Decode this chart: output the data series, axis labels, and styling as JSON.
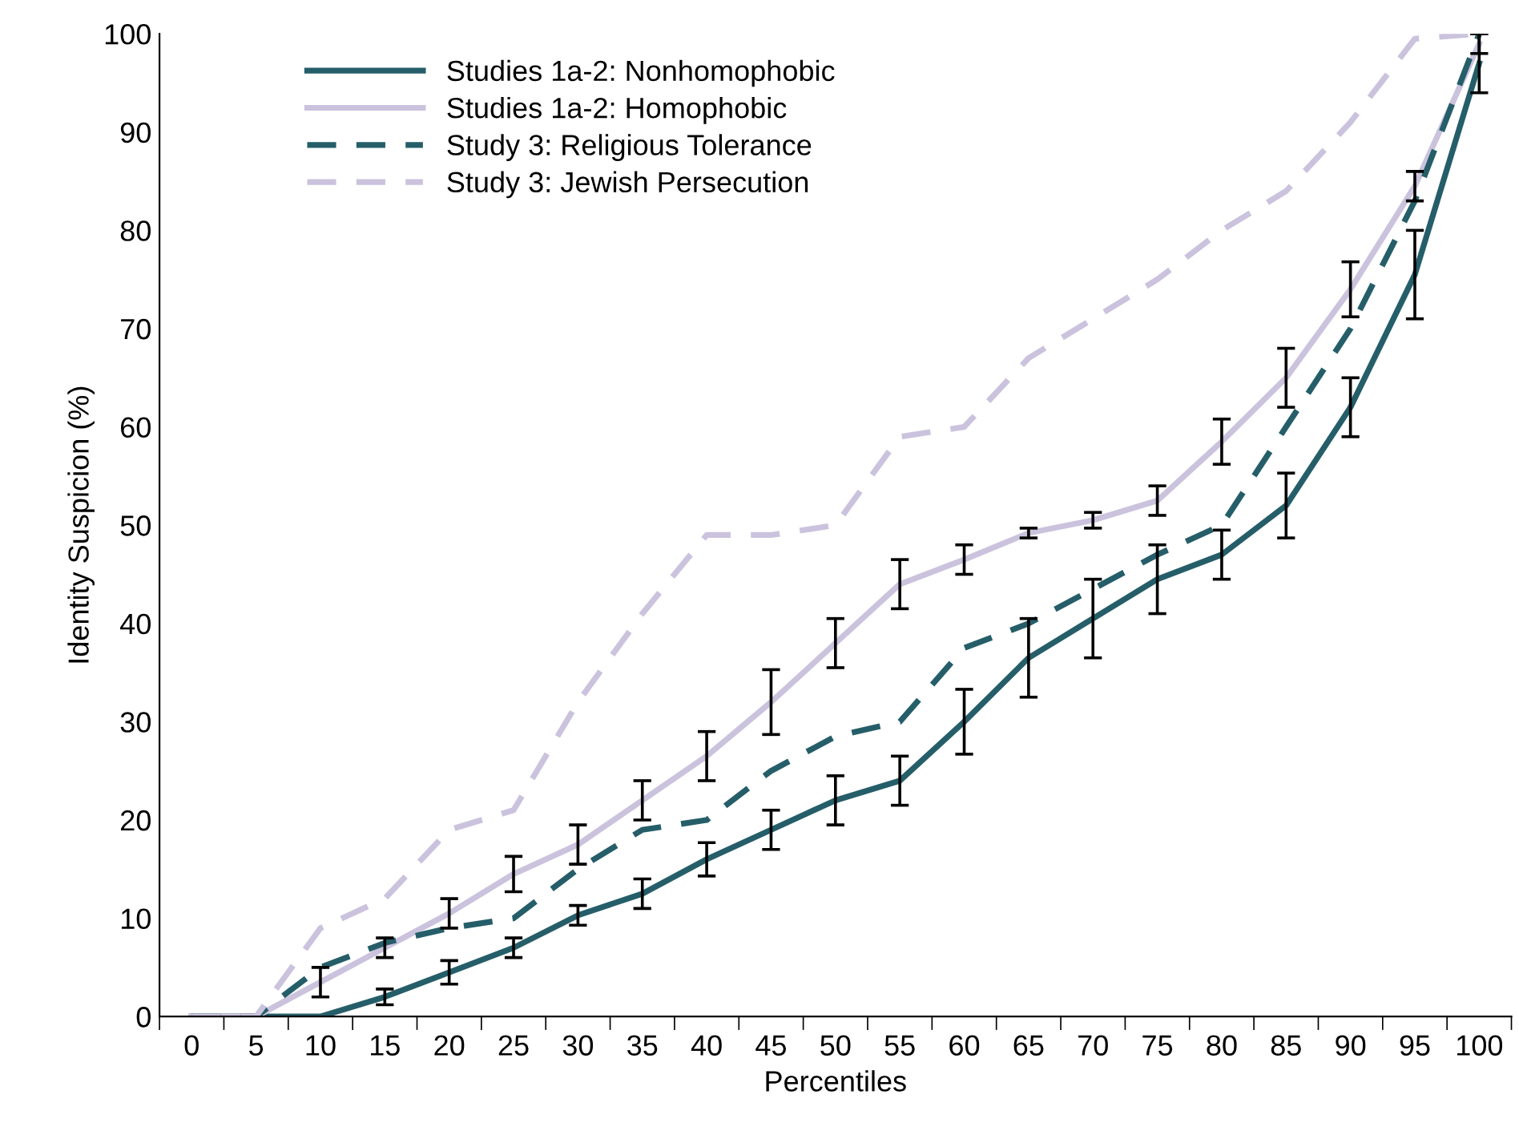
{
  "chart_data": {
    "type": "line",
    "xlabel": "Percentiles",
    "ylabel": "Identity Suspicion (%)",
    "categories": [
      "0",
      "5",
      "10",
      "15",
      "20",
      "25",
      "30",
      "35",
      "40",
      "45",
      "50",
      "55",
      "60",
      "65",
      "70",
      "75",
      "80",
      "85",
      "90",
      "95",
      "100"
    ],
    "ylim": [
      0,
      100
    ],
    "yticks": [
      0,
      10,
      20,
      30,
      40,
      50,
      60,
      70,
      80,
      90,
      100
    ],
    "grid": false,
    "legend": "top left",
    "series": [
      {
        "name": "Studies 1a-2: Nonhomophobic",
        "color": "#255e69",
        "line_style": "solid",
        "values": [
          0,
          0,
          0,
          2,
          4.5,
          7,
          10.3,
          12.5,
          16,
          19,
          22,
          24,
          30,
          36.5,
          40.5,
          44.5,
          47,
          52,
          62,
          75.5,
          97
        ],
        "errors": [
          null,
          null,
          null,
          0.8,
          1.2,
          1,
          1,
          1.5,
          1.7,
          2,
          2.5,
          2.5,
          3.3,
          4,
          4,
          3.5,
          2.5,
          3.3,
          3,
          4.5,
          3
        ]
      },
      {
        "name": "Studies 1a-2: Homophobic",
        "color": "#cbc3dd",
        "line_style": "solid",
        "values": [
          0,
          0,
          3.5,
          7,
          10.5,
          14.5,
          17.5,
          22,
          26.5,
          32,
          38,
          44,
          46.5,
          49.2,
          50.5,
          52.5,
          58.5,
          65,
          74,
          84.5,
          99
        ],
        "errors": [
          null,
          null,
          1.5,
          1,
          1.5,
          1.8,
          2,
          2,
          2.5,
          3.3,
          2.5,
          2.5,
          1.5,
          0.5,
          0.8,
          1.5,
          2.3,
          3,
          2.8,
          1.5,
          1
        ]
      },
      {
        "name": "Study 3: Religious Tolerance",
        "color": "#255e69",
        "line_style": "dashed",
        "values": [
          0,
          0,
          5,
          7.5,
          9,
          10,
          15,
          19,
          20,
          25,
          28.5,
          30,
          37.5,
          40,
          43.5,
          47,
          50,
          60,
          70,
          83,
          100
        ]
      },
      {
        "name": "Study 3: Jewish Persecution",
        "color": "#cbc3dd",
        "line_style": "dashed",
        "values": [
          0,
          0,
          9,
          12,
          19,
          21,
          32,
          41,
          49,
          49,
          50,
          59,
          60,
          67,
          71,
          75,
          80,
          84,
          91,
          99.5,
          100
        ]
      }
    ]
  }
}
